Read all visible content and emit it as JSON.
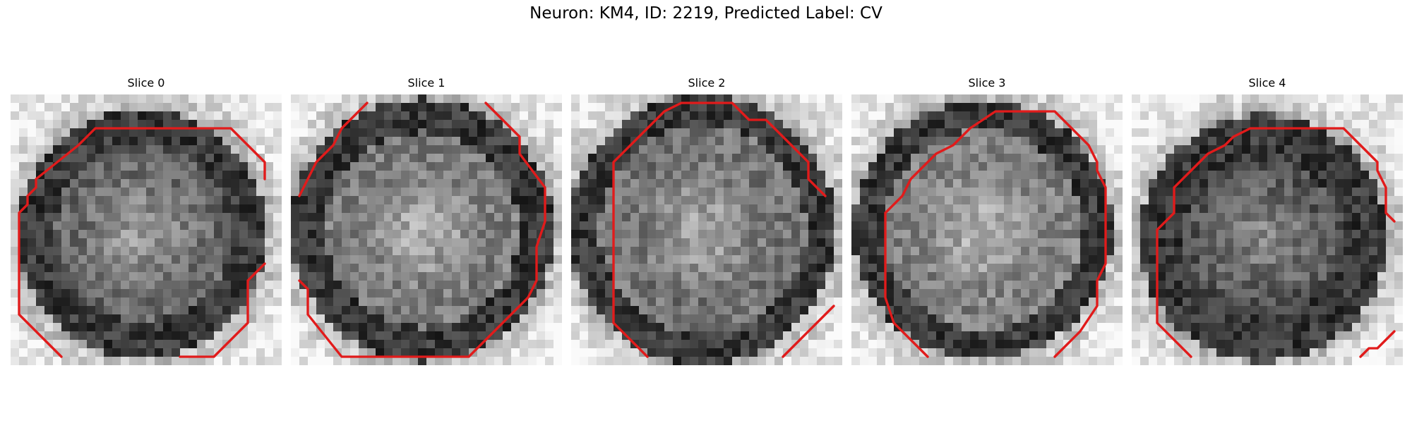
{
  "figure": {
    "title": "Neuron: KM4, ID: 2219, Predicted Label: CV"
  },
  "panels": [
    {
      "label": "Slice 0"
    },
    {
      "label": "Slice 1"
    },
    {
      "label": "Slice 2"
    },
    {
      "label": "Slice 3"
    },
    {
      "label": "Slice 4"
    }
  ],
  "colors": {
    "contour": "#e11b1b",
    "background": "#ffffff"
  }
}
